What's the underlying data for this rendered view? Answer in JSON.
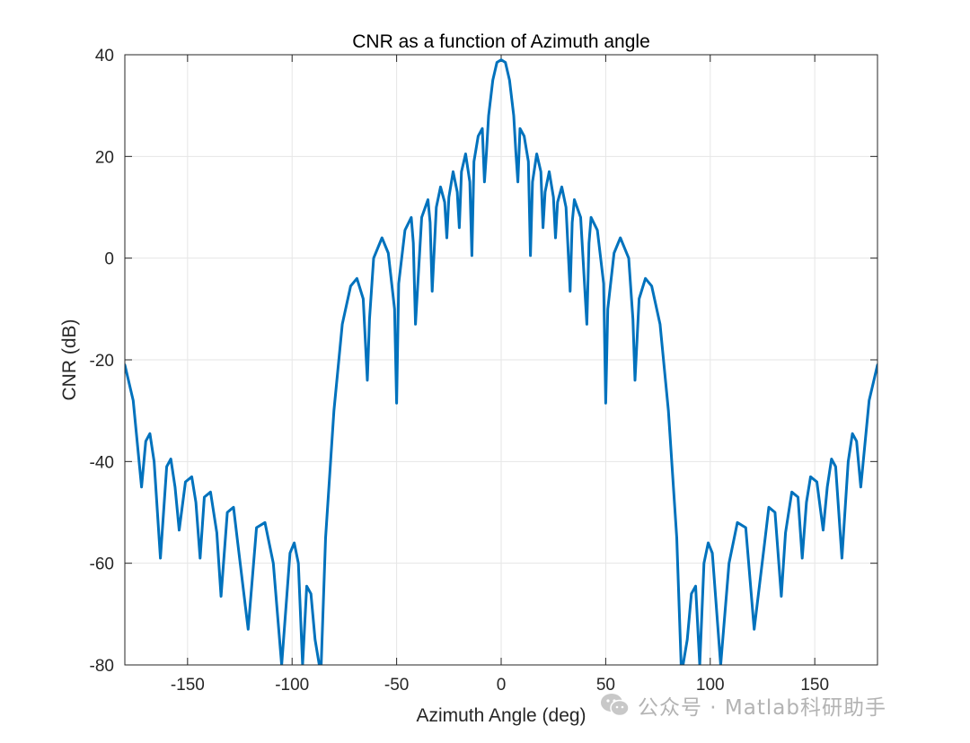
{
  "chart_data": {
    "type": "line",
    "title": "CNR as a function of Azimuth angle",
    "xlabel": "Azimuth Angle (deg)",
    "ylabel": "CNR (dB)",
    "xlim": [
      -180,
      180
    ],
    "ylim": [
      -80,
      40
    ],
    "xticks": [
      -150,
      -100,
      -50,
      0,
      50,
      100,
      150
    ],
    "xtick_labels": [
      "-150",
      "-100",
      "-50",
      "0",
      "50",
      "100",
      "150"
    ],
    "yticks": [
      -80,
      -60,
      -40,
      -20,
      0,
      20,
      40
    ],
    "ytick_labels": [
      "-80",
      "-60",
      "-40",
      "-20",
      "0",
      "20",
      "40"
    ],
    "grid": true,
    "series": [
      {
        "name": "CNR",
        "color": "#0072BD",
        "x": [
          -180,
          -176,
          -172,
          -170,
          -168,
          -166,
          -163,
          -160,
          -158,
          -156,
          -154,
          -151,
          -148,
          -146,
          -144,
          -142,
          -139,
          -136,
          -134,
          -131,
          -128,
          -126,
          -121,
          -117,
          -113,
          -109,
          -105,
          -101,
          -99,
          -97,
          -95,
          -93,
          -91,
          -89,
          -87,
          -86.1,
          -84,
          -80,
          -76,
          -72,
          -69,
          -66,
          -64,
          -63,
          -61,
          -57,
          -54,
          -51,
          -50,
          -49,
          -46,
          -43,
          -42,
          -41,
          -38,
          -35,
          -34,
          -33,
          -31,
          -29,
          -27,
          -26,
          -25,
          -23,
          -21,
          -20,
          -19,
          -17,
          -15,
          -14,
          -13,
          -11,
          -9,
          -8,
          -7,
          -6,
          -4,
          -2,
          0,
          2,
          4,
          6,
          7,
          8,
          9,
          11,
          13,
          14,
          15,
          17,
          19,
          20,
          21,
          23,
          25,
          26,
          27,
          29,
          31,
          33,
          34,
          35,
          38,
          41,
          42,
          43,
          46,
          49,
          50,
          51,
          54,
          57,
          61,
          63,
          64,
          66,
          69,
          72,
          76,
          80,
          84,
          86.1,
          87,
          89,
          91,
          93,
          95,
          97,
          99,
          101,
          105,
          109,
          113,
          117,
          121,
          126,
          128,
          131,
          134,
          136,
          139,
          142,
          144,
          146,
          148,
          151,
          154,
          156,
          158,
          160,
          163,
          166,
          168,
          170,
          172,
          176,
          180
        ],
        "y": [
          -21,
          -28,
          -45,
          -36,
          -34.5,
          -40,
          -59,
          -41,
          -39.5,
          -45,
          -53.5,
          -44,
          -43,
          -48,
          -59,
          -47,
          -46,
          -54,
          -66.5,
          -50,
          -49,
          -56,
          -73,
          -53,
          -52,
          -60,
          -80,
          -58,
          -56,
          -60,
          -80,
          -64.5,
          -66,
          -75,
          -80,
          -80,
          -55,
          -30,
          -13,
          -5.5,
          -4,
          -8,
          -24,
          -12,
          0,
          4,
          1,
          -10,
          -28.5,
          -5,
          5.5,
          8,
          3,
          -13,
          8,
          11.5,
          7,
          -6.5,
          10,
          14,
          11,
          4,
          12,
          17,
          13,
          6,
          17,
          20.5,
          15,
          0.5,
          19,
          24,
          25.5,
          15,
          21,
          28,
          35,
          38.5,
          39,
          38.5,
          35,
          28,
          21,
          15,
          25.5,
          24,
          19,
          0.5,
          15,
          20.5,
          17,
          6,
          13,
          17,
          12,
          4,
          11,
          14,
          10,
          -6.5,
          7,
          11.5,
          8,
          -13,
          3,
          8,
          5.5,
          -5,
          -28.5,
          -10,
          1,
          4,
          0,
          -12,
          -24,
          -8,
          -4,
          -5.5,
          -13,
          -30,
          -55,
          -80,
          -80,
          -75,
          -66,
          -64.5,
          -80,
          -60,
          -56,
          -58,
          -80,
          -60,
          -52,
          -53,
          -73,
          -56,
          -49,
          -50,
          -66.5,
          -54,
          -46,
          -47,
          -59,
          -48,
          -43,
          -44,
          -53.5,
          -45,
          -39.5,
          -41,
          -59,
          -40,
          -34.5,
          -36,
          -45,
          -28,
          -21
        ]
      }
    ]
  },
  "watermark": {
    "text": "公众号 · Matlab科研助手",
    "icon": "wechat-icon"
  }
}
